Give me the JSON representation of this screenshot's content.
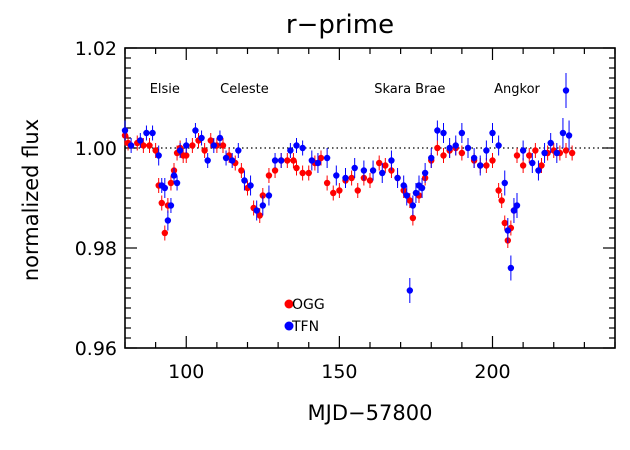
{
  "chart_data": {
    "type": "scatter",
    "title": "r−prime",
    "xlabel": "MJD−57800",
    "ylabel": "normalized flux",
    "xlim": [
      80,
      240
    ],
    "ylim": [
      0.96,
      1.02
    ],
    "xticks": [
      100,
      150,
      200
    ],
    "xtick_labels": [
      "100",
      "150",
      "200"
    ],
    "yticks": [
      0.96,
      0.98,
      1.0,
      1.02
    ],
    "ytick_labels": [
      "0.96",
      "0.98",
      "1.00",
      "1.02"
    ],
    "reference_line": {
      "y": 1.0,
      "style": "dotted"
    },
    "grid": false,
    "legend_position": "lower-center",
    "annotations": [
      {
        "text": "Elsie",
        "x": 93,
        "y": 1.011
      },
      {
        "text": "Celeste",
        "x": 119,
        "y": 1.011
      },
      {
        "text": "Skara Brae",
        "x": 173,
        "y": 1.011
      },
      {
        "text": "Angkor",
        "x": 208,
        "y": 1.011
      }
    ],
    "series": [
      {
        "name": "OGG",
        "color": "#ff0000",
        "x": [
          80,
          81,
          84,
          86,
          88,
          90,
          91,
          92,
          93,
          94,
          95,
          96,
          97,
          98,
          99,
          100,
          102,
          104,
          106,
          108,
          110,
          112,
          114,
          116,
          118,
          120,
          122,
          124,
          125,
          127,
          129,
          131,
          133,
          135,
          136,
          138,
          140,
          142,
          144,
          146,
          148,
          150,
          152,
          154,
          156,
          158,
          160,
          163,
          165,
          167,
          169,
          171,
          173,
          174,
          176,
          178,
          180,
          182,
          184,
          186,
          188,
          190,
          194,
          196,
          198,
          200,
          202,
          203,
          204,
          205,
          206,
          207,
          208,
          210,
          212,
          214,
          216,
          218,
          220,
          222,
          224,
          226
        ],
        "y": [
          1.0025,
          1.001,
          1.001,
          1.0005,
          1.0005,
          0.9995,
          0.9925,
          0.989,
          0.983,
          0.9885,
          0.993,
          0.9955,
          0.999,
          1.0,
          0.9985,
          0.9985,
          1.0005,
          1.0015,
          0.9995,
          1.0015,
          1.0005,
          1.0005,
          0.9985,
          0.997,
          0.9955,
          0.992,
          0.988,
          0.9865,
          0.9905,
          0.9945,
          0.9955,
          0.9975,
          0.9975,
          0.9975,
          0.996,
          0.995,
          0.995,
          0.997,
          0.998,
          0.993,
          0.991,
          0.9915,
          0.9935,
          0.994,
          0.9915,
          0.994,
          0.9935,
          0.997,
          0.9965,
          0.9955,
          0.994,
          0.9915,
          0.9895,
          0.986,
          0.9905,
          0.994,
          0.9975,
          1.0,
          0.9985,
          0.9995,
          1.0,
          0.999,
          0.9975,
          0.9965,
          0.9965,
          0.9975,
          0.9915,
          0.9895,
          0.985,
          0.9815,
          0.984,
          0.9875,
          0.9985,
          0.9965,
          0.9985,
          0.9995,
          0.9965,
          0.999,
          0.9995,
          0.999,
          0.9995,
          0.999
        ],
        "err": [
          0.002,
          0.0015,
          0.0015,
          0.0015,
          0.0015,
          0.0015,
          0.0015,
          0.0015,
          0.0015,
          0.0015,
          0.0015,
          0.0015,
          0.0015,
          0.0015,
          0.0015,
          0.0015,
          0.0015,
          0.0015,
          0.0015,
          0.0015,
          0.0015,
          0.0015,
          0.0015,
          0.0015,
          0.0015,
          0.0015,
          0.0015,
          0.0015,
          0.0015,
          0.0015,
          0.0015,
          0.0015,
          0.0015,
          0.0015,
          0.0015,
          0.0015,
          0.0015,
          0.0015,
          0.0015,
          0.0015,
          0.0015,
          0.0015,
          0.0015,
          0.0015,
          0.0015,
          0.0015,
          0.0015,
          0.0015,
          0.0015,
          0.0015,
          0.0015,
          0.0015,
          0.0015,
          0.0015,
          0.0015,
          0.0015,
          0.0015,
          0.0015,
          0.0015,
          0.0015,
          0.0015,
          0.0015,
          0.0015,
          0.0015,
          0.0015,
          0.0015,
          0.0015,
          0.0015,
          0.0015,
          0.0015,
          0.0015,
          0.0015,
          0.0015,
          0.0015,
          0.0015,
          0.0015,
          0.0015,
          0.0015,
          0.0015,
          0.0015,
          0.0015,
          0.0015
        ]
      },
      {
        "name": "TFN",
        "color": "#0000ff",
        "x": [
          80,
          82,
          85,
          87,
          89,
          91,
          92,
          93,
          94,
          95,
          96,
          97,
          98,
          100,
          103,
          105,
          107,
          109,
          111,
          113,
          115,
          117,
          119,
          121,
          123,
          125,
          127,
          129,
          131,
          134,
          136,
          138,
          141,
          143,
          146,
          149,
          152,
          155,
          158,
          161,
          164,
          167,
          169,
          171,
          172,
          173,
          174,
          175,
          176,
          177,
          178,
          180,
          182,
          184,
          186,
          188,
          190,
          192,
          194,
          196,
          198,
          200,
          202,
          204,
          205,
          206,
          207,
          208,
          210,
          213,
          215,
          217,
          219,
          221,
          223,
          224,
          225
        ],
        "y": [
          1.0035,
          1.0005,
          1.0015,
          1.003,
          1.003,
          0.9985,
          0.9925,
          0.992,
          0.9855,
          0.9885,
          0.9945,
          0.993,
          0.9995,
          1.0005,
          1.0035,
          1.002,
          0.9975,
          1.0005,
          1.002,
          0.998,
          0.9975,
          0.9995,
          0.9935,
          0.9925,
          0.9875,
          0.9885,
          0.9905,
          0.9975,
          0.9975,
          0.9995,
          1.0005,
          1.0,
          0.9975,
          0.997,
          0.998,
          0.9945,
          0.994,
          0.996,
          0.9955,
          0.9955,
          0.995,
          0.9975,
          0.994,
          0.9925,
          0.9905,
          0.9715,
          0.9885,
          0.991,
          0.9925,
          0.992,
          0.995,
          0.998,
          1.0035,
          1.003,
          1.0,
          1.0005,
          1.003,
          1.0,
          0.998,
          0.9965,
          0.9995,
          1.003,
          1.0005,
          0.993,
          0.9835,
          0.976,
          0.9875,
          0.9885,
          0.9995,
          0.997,
          0.9955,
          0.999,
          1.001,
          0.999,
          1.003,
          1.0115,
          1.0025
        ],
        "err": [
          0.002,
          0.0015,
          0.0015,
          0.0015,
          0.0015,
          0.002,
          0.0015,
          0.002,
          0.002,
          0.0015,
          0.0015,
          0.0015,
          0.0015,
          0.0015,
          0.0015,
          0.0015,
          0.0015,
          0.0015,
          0.0015,
          0.0015,
          0.0015,
          0.0015,
          0.002,
          0.002,
          0.002,
          0.002,
          0.002,
          0.0015,
          0.0015,
          0.0015,
          0.0015,
          0.0015,
          0.002,
          0.002,
          0.002,
          0.002,
          0.002,
          0.002,
          0.002,
          0.002,
          0.002,
          0.002,
          0.002,
          0.002,
          0.002,
          0.0025,
          0.002,
          0.002,
          0.002,
          0.002,
          0.002,
          0.002,
          0.002,
          0.002,
          0.002,
          0.002,
          0.002,
          0.002,
          0.002,
          0.002,
          0.002,
          0.002,
          0.002,
          0.0025,
          0.0025,
          0.0025,
          0.0025,
          0.0025,
          0.002,
          0.002,
          0.002,
          0.002,
          0.002,
          0.002,
          0.003,
          0.0035,
          0.003
        ]
      }
    ]
  }
}
